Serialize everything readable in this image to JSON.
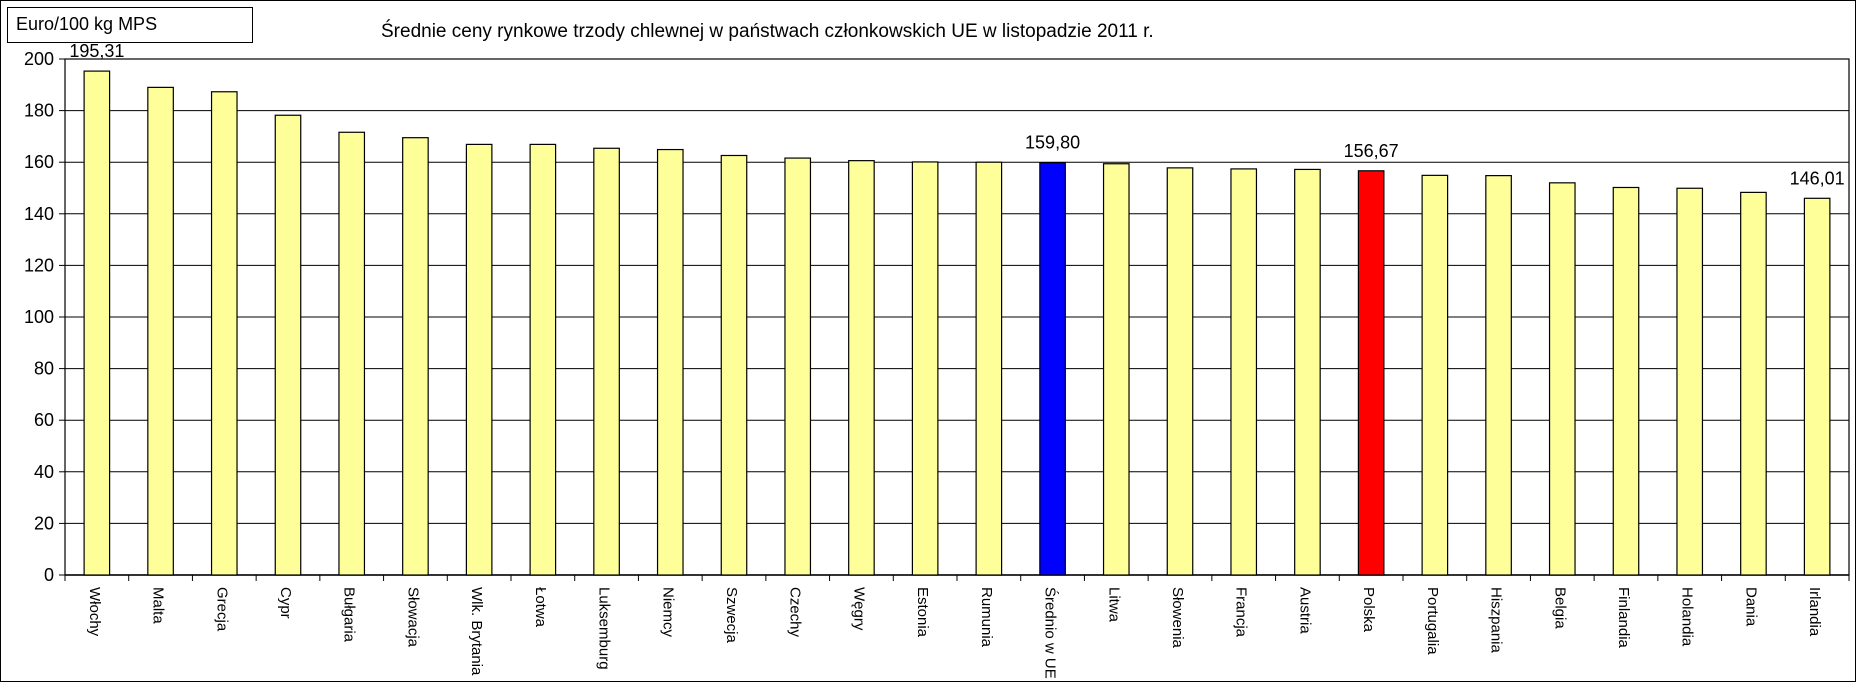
{
  "unit_label": "Euro/100 kg MPS",
  "chart_data": {
    "type": "bar",
    "title": "Średnie ceny rynkowe trzody chlewnej w państwach członkowskich UE w listopadzie 2011 r.",
    "ylabel": "Euro/100 kg MPS",
    "xlabel": "",
    "ylim": [
      0,
      200
    ],
    "yticks": [
      0,
      20,
      40,
      60,
      80,
      100,
      120,
      140,
      160,
      180,
      200
    ],
    "grid": true,
    "categories": [
      "Włochy",
      "Malta",
      "Grecja",
      "Cypr",
      "Bułgaria",
      "Słowacja",
      "Wlk. Brytania",
      "Łotwa",
      "Luksemburg",
      "Niemcy",
      "Szwecja",
      "Czechy",
      "Węgry",
      "Estonia",
      "Rumunia",
      "Średnio w UE",
      "Litwa",
      "Słowenia",
      "Francja",
      "Austria",
      "Polska",
      "Portugalia",
      "Hiszpania",
      "Belgia",
      "Finlandia",
      "Holandia",
      "Dania",
      "Irlandia"
    ],
    "values": [
      195.31,
      189.0,
      187.3,
      178.2,
      171.6,
      169.5,
      166.9,
      166.9,
      165.4,
      164.9,
      162.6,
      161.6,
      160.6,
      160.1,
      160.0,
      159.8,
      159.4,
      157.8,
      157.4,
      157.2,
      156.67,
      154.9,
      154.8,
      152.0,
      150.2,
      149.9,
      148.3,
      146.01
    ],
    "colors": [
      "#ffff99",
      "#ffff99",
      "#ffff99",
      "#ffff99",
      "#ffff99",
      "#ffff99",
      "#ffff99",
      "#ffff99",
      "#ffff99",
      "#ffff99",
      "#ffff99",
      "#ffff99",
      "#ffff99",
      "#ffff99",
      "#ffff99",
      "#0000ff",
      "#ffff99",
      "#ffff99",
      "#ffff99",
      "#ffff99",
      "#ff0000",
      "#ffff99",
      "#ffff99",
      "#ffff99",
      "#ffff99",
      "#ffff99",
      "#ffff99",
      "#ffff99"
    ],
    "data_labels": [
      {
        "index": 0,
        "text": "195,31"
      },
      {
        "index": 15,
        "text": "159,80"
      },
      {
        "index": 20,
        "text": "156,67"
      },
      {
        "index": 27,
        "text": "146,01"
      }
    ]
  }
}
